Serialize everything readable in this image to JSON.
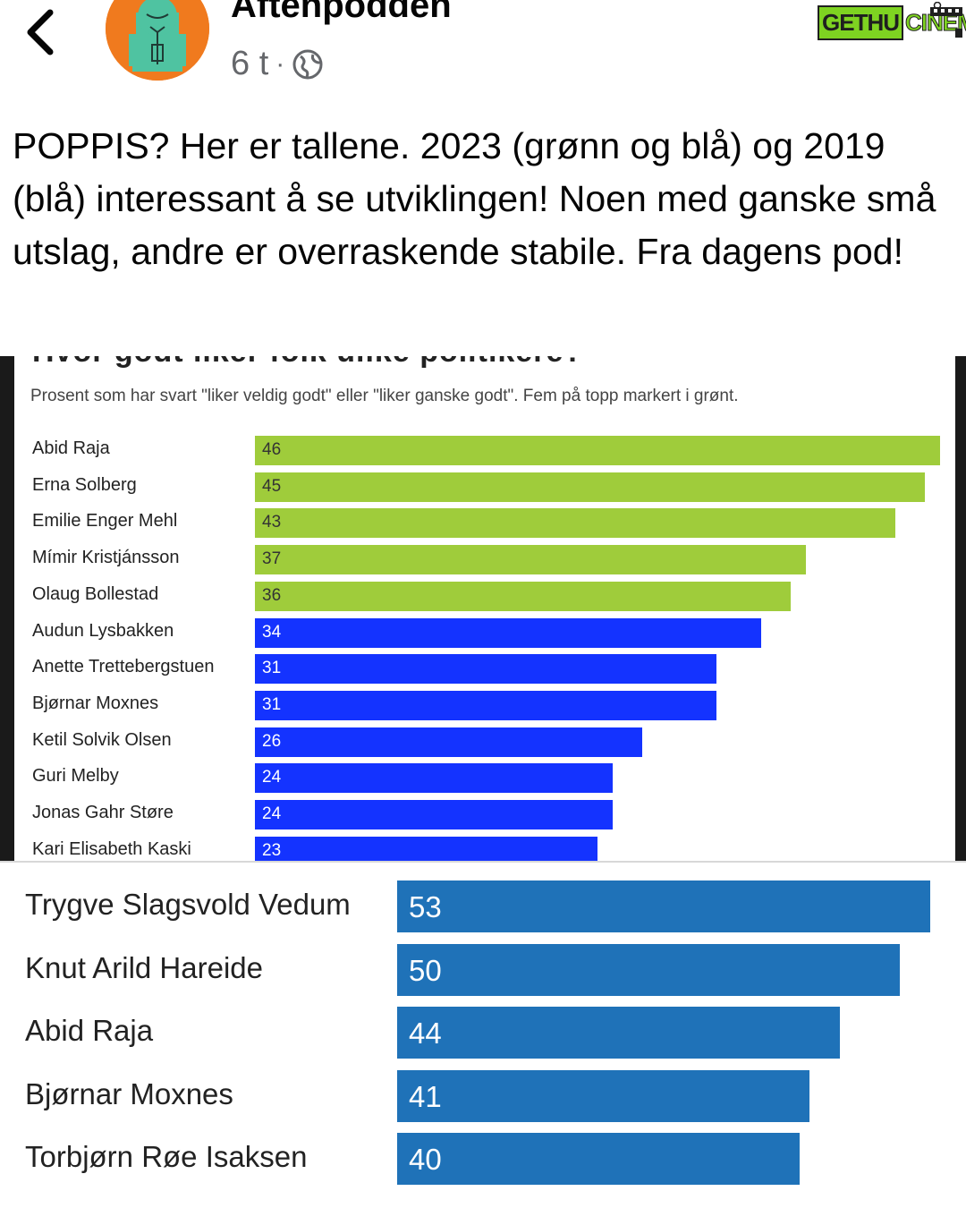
{
  "header": {
    "page_name": "Aftenpodden",
    "time": "6 t",
    "separator": "·",
    "watermark_left": "GETHU",
    "watermark_right": "CINEMA"
  },
  "post": {
    "text": "POPPIS? Her er tallene. 2023 (grønn og blå) og 2019 (blå) interessant å se utviklingen! Noen med ganske små utslag, andre er overraskende stabile. Fra dagens pod!"
  },
  "colors": {
    "top5": "#9fcc3b",
    "rest": "#1433ff",
    "chart2_bar": "#1f72b8",
    "avatar_bg": "#f07a1e",
    "avatar_figure": "#4fc3a1"
  },
  "chart_data": [
    {
      "type": "bar",
      "orientation": "horizontal",
      "title": "Hvor godt liker folk ulike politikere?",
      "subtitle": "Prosent som har svart \"liker veldig godt\" eller \"liker ganske godt\". Fem på topp markert i grønt.",
      "categories": [
        "Abid Raja",
        "Erna Solberg",
        "Emilie Enger Mehl",
        "Mímir Kristjánsson",
        "Olaug Bollestad",
        "Audun Lysbakken",
        "Anette Trettebergstuen",
        "Bjørnar Moxnes",
        "Ketil Solvik Olsen",
        "Guri Melby",
        "Jonas Gahr Støre",
        "Kari Elisabeth Kaski"
      ],
      "values": [
        46,
        45,
        43,
        37,
        36,
        34,
        31,
        31,
        26,
        24,
        24,
        23
      ],
      "highlight_top": 5,
      "xlim": [
        0,
        46
      ]
    },
    {
      "type": "bar",
      "orientation": "horizontal",
      "categories": [
        "Trygve Slagsvold Vedum",
        "Knut Arild Hareide",
        "Abid Raja",
        "Bjørnar Moxnes",
        "Torbjørn Røe Isaksen"
      ],
      "values": [
        53,
        50,
        44,
        41,
        40
      ],
      "xlim": [
        0,
        53
      ]
    }
  ]
}
